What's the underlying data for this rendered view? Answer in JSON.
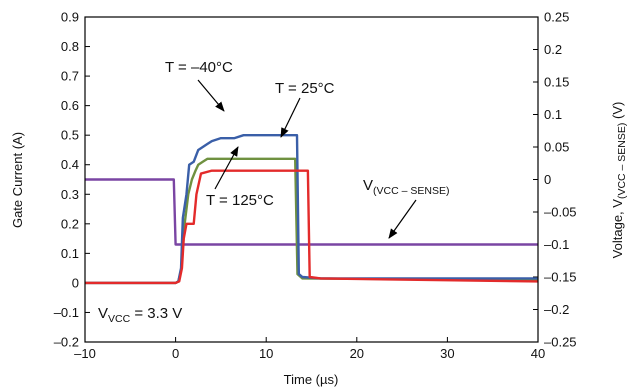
{
  "chart_data": {
    "type": "line",
    "xlabel": "Time (µs)",
    "ylabel": "Gate Current (A)",
    "y2label_prefix": "Voltage, V",
    "y2label_sub": "(VCC – SENSE)",
    "y2label_suffix": " (V)",
    "xlim": [
      -10,
      40
    ],
    "ylim": [
      -0.2,
      0.9
    ],
    "y2lim": [
      -0.25,
      0.25
    ],
    "grid": false,
    "x_ticks": [
      "–10",
      "0",
      "10",
      "20",
      "30",
      "40"
    ],
    "y_ticks": [
      "–0.2",
      "–0.1",
      "0",
      "0.1",
      "0.2",
      "0.3",
      "0.4",
      "0.5",
      "0.6",
      "0.7",
      "0.8",
      "0.9"
    ],
    "y2_ticks": [
      "–0.25",
      "–0.2",
      "–0.15",
      "–0.1",
      "–0.05",
      "0",
      "0.05",
      "0.1",
      "0.15",
      "0.2",
      "0.25"
    ],
    "series": [
      {
        "label": "T = –40°C",
        "color": "#3a5fa8",
        "axis": "left",
        "points": [
          [
            -10,
            0
          ],
          [
            0,
            0
          ],
          [
            0.3,
            0.005
          ],
          [
            0.6,
            0.05
          ],
          [
            0.8,
            0.22
          ],
          [
            1.2,
            0.3
          ],
          [
            1.5,
            0.4
          ],
          [
            2,
            0.41
          ],
          [
            2.5,
            0.45
          ],
          [
            3,
            0.46
          ],
          [
            3.5,
            0.47
          ],
          [
            4,
            0.48
          ],
          [
            5,
            0.49
          ],
          [
            6.5,
            0.49
          ],
          [
            7.5,
            0.5
          ],
          [
            13.4,
            0.5
          ],
          [
            13.6,
            0.03
          ],
          [
            14,
            0.02
          ],
          [
            16,
            0.015
          ],
          [
            40,
            0.015
          ]
        ]
      },
      {
        "label": "T = 25°C",
        "color": "#6f9140",
        "axis": "left",
        "points": [
          [
            -10,
            0
          ],
          [
            0,
            0
          ],
          [
            0.3,
            0.005
          ],
          [
            0.6,
            0.04
          ],
          [
            1,
            0.2
          ],
          [
            1.4,
            0.3
          ],
          [
            1.8,
            0.35
          ],
          [
            2.2,
            0.38
          ],
          [
            2.5,
            0.4
          ],
          [
            3,
            0.41
          ],
          [
            3.5,
            0.42
          ],
          [
            13.2,
            0.42
          ],
          [
            13.45,
            0.03
          ],
          [
            14,
            0.015
          ],
          [
            40,
            0.01
          ]
        ]
      },
      {
        "label": "T = 125°C",
        "color": "#e32b2b",
        "axis": "left",
        "points": [
          [
            -10,
            0
          ],
          [
            0,
            0
          ],
          [
            0.4,
            0.005
          ],
          [
            0.7,
            0.05
          ],
          [
            0.9,
            0.15
          ],
          [
            1.2,
            0.2
          ],
          [
            2,
            0.2
          ],
          [
            2.3,
            0.3
          ],
          [
            2.8,
            0.37
          ],
          [
            4,
            0.38
          ],
          [
            14.6,
            0.38
          ],
          [
            14.8,
            0.02
          ],
          [
            16,
            0.015
          ],
          [
            40,
            0.005
          ]
        ]
      },
      {
        "label": "V(VCC – SENSE)",
        "color": "#7a45a3",
        "axis": "right",
        "points": [
          [
            -10,
            0
          ],
          [
            -0.2,
            0
          ],
          [
            0,
            -0.1
          ],
          [
            40,
            -0.1
          ]
        ]
      }
    ],
    "annotations": [
      {
        "id": "t-40",
        "text": "T = –40°C"
      },
      {
        "id": "t25",
        "text": "T = 25°C"
      },
      {
        "id": "t125",
        "text": "T = 125°C"
      },
      {
        "id": "vsense",
        "text_main": "V",
        "text_sub": "(VCC – SENSE)"
      },
      {
        "id": "vvcc",
        "text_main": "V",
        "text_sub": "VCC",
        "text_suffix": " = 3.3 V"
      }
    ]
  }
}
